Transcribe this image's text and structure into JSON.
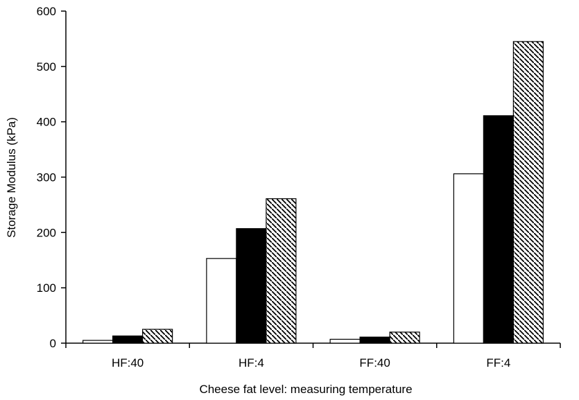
{
  "chart_data": {
    "type": "bar",
    "title": "",
    "xlabel": "Cheese fat level: measuring temperature",
    "ylabel": "Storage Modulus (kPa)",
    "ylim": [
      0,
      600
    ],
    "yticks": [
      "0",
      "100",
      "200",
      "300",
      "400",
      "500",
      "600"
    ],
    "categories": [
      "HF:40",
      "HF:4",
      "FF:40",
      "FF:4"
    ],
    "grid": false,
    "legend": "none",
    "series": [
      {
        "fill": "#ffffff",
        "pattern": "none",
        "values": [
          5,
          153,
          7,
          306
        ]
      },
      {
        "fill": "#000000",
        "pattern": "solid",
        "values": [
          13,
          207,
          11,
          411
        ]
      },
      {
        "fill": "#ffffff",
        "pattern": "diagonal-hatch",
        "values": [
          25,
          261,
          20,
          545
        ]
      }
    ]
  }
}
